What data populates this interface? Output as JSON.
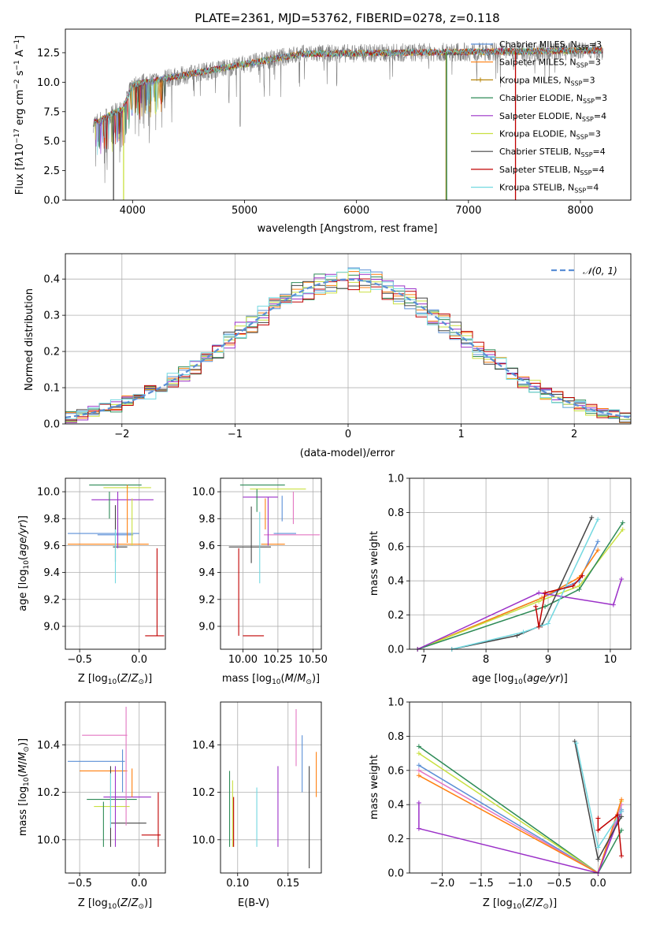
{
  "colors": {
    "chabrier_miles": "#5b8fd6",
    "salpeter_miles": "#ff7f0e",
    "kroupa_miles": "#b8860b",
    "chabrier_elodie": "#2e8b57",
    "salpeter_elodie": "#9b30c8",
    "kroupa_elodie": "#c9e040",
    "chabrier_stelib": "#444444",
    "salpeter_stelib": "#c00000",
    "kroupa_stelib": "#72d8e0",
    "pink": "#e377c2",
    "data": "#808080",
    "normal": "#5b8fd6"
  },
  "chart_data": [
    {
      "id": "spectrum",
      "type": "line",
      "title": "PLATE=2361, MJD=53762, FIBERID=0278, z=0.118",
      "xlabel": "wavelength [Angstrom, rest frame]",
      "ylabel": "Flux [f_λ 10^-17 erg cm^-2 s^-1 A^-1]",
      "xlim": [
        3400,
        8450
      ],
      "ylim": [
        0,
        14.5
      ],
      "xticks": [
        "4000",
        "5000",
        "6000",
        "7000",
        "8000"
      ],
      "yticks": [
        "0.0",
        "2.5",
        "5.0",
        "7.5",
        "10.0",
        "12.5"
      ],
      "legend_position": "upper right",
      "series": [
        {
          "name": "Chabrier MILES, N_SSP=3",
          "values_note": "continuum ~6.5 at 3650 rising to ~12.5 by 5500"
        },
        {
          "name": "Salpeter MILES, N_SSP=3"
        },
        {
          "name": "Kroupa MILES, N_SSP=3"
        },
        {
          "name": "Chabrier ELODIE, N_SSP=3"
        },
        {
          "name": "Salpeter ELODIE, N_SSP=4"
        },
        {
          "name": "Kroupa ELODIE, N_SSP=3"
        },
        {
          "name": "Chabrier STELIB, N_SSP=4"
        },
        {
          "name": "Salpeter STELIB, N_SSP=4"
        },
        {
          "name": "Kroupa STELIB, N_SSP=4"
        }
      ]
    },
    {
      "id": "residuals",
      "type": "line",
      "xlabel": "(data-model)/error",
      "ylabel": "Normed distribution",
      "xlim": [
        -2.5,
        2.5
      ],
      "ylim": [
        0,
        0.47
      ],
      "xticks": [
        "−2",
        "−1",
        "0",
        "1",
        "2"
      ],
      "yticks": [
        "0.0",
        "0.1",
        "0.2",
        "0.3",
        "0.4"
      ],
      "legend": "𝒩(0, 1)"
    },
    {
      "id": "age_vs_Z",
      "type": "scatter",
      "xlabel": "Z [log10(Z/Z⊙)]",
      "ylabel": "age [log10(age/yr)]",
      "xlim": [
        -0.62,
        0.22
      ],
      "ylim": [
        8.83,
        10.1
      ],
      "xticks": [
        "−0.5",
        "0.0"
      ],
      "yticks": [
        "9.0",
        "9.2",
        "9.4",
        "9.6",
        "9.8",
        "10.0"
      ],
      "points": [
        {
          "x": -0.3,
          "y": 9.69,
          "xerr": 0.3,
          "yerr": 0.0,
          "c": "chabrier_miles"
        },
        {
          "x": -0.26,
          "y": 9.61,
          "xerr": 0.34,
          "yerr": 0.0,
          "c": "salpeter_miles"
        },
        {
          "x": -0.2,
          "y": 9.68,
          "xerr": 0.15,
          "yerr": 0.0,
          "c": "chabrier_miles"
        },
        {
          "x": -0.2,
          "y": 10.05,
          "xerr": 0.22,
          "yerr": 0.0,
          "c": "chabrier_elodie"
        },
        {
          "x": -0.14,
          "y": 9.94,
          "xerr": 0.26,
          "yerr": 0.0,
          "c": "salpeter_elodie"
        },
        {
          "x": -0.1,
          "y": 10.03,
          "xerr": 0.2,
          "yerr": 0.0,
          "c": "kroupa_elodie"
        },
        {
          "x": -0.16,
          "y": 9.59,
          "xerr": 0.06,
          "yerr": 0.0,
          "c": "chabrier_stelib"
        },
        {
          "x": 0.13,
          "y": 8.93,
          "xerr": 0.08,
          "yerr": 0.0,
          "c": "salpeter_stelib"
        }
      ]
    },
    {
      "id": "age_vs_mass",
      "type": "scatter",
      "xlabel": "mass [log10(M/M⊙)]",
      "ylabel": "",
      "xlim": [
        9.84,
        10.56
      ],
      "ylim": [
        8.83,
        10.1
      ],
      "xticks": [
        "10.00",
        "10.25",
        "10.50"
      ],
      "yticks": [
        "9.0",
        "9.2",
        "9.4",
        "9.6",
        "9.8",
        "10.0"
      ]
    },
    {
      "id": "weight_vs_age",
      "type": "line",
      "xlabel": "age [log10(age/yr)]",
      "ylabel": "mass weight",
      "xlim": [
        6.77,
        10.33
      ],
      "ylim": [
        0,
        1.0
      ],
      "xticks": [
        "7",
        "8",
        "9",
        "10"
      ],
      "yticks": [
        "0.0",
        "0.2",
        "0.4",
        "0.6",
        "0.8",
        "1.0"
      ]
    },
    {
      "id": "mass_vs_Z",
      "type": "scatter",
      "xlabel": "Z [log10(Z/Z⊙)]",
      "ylabel": "mass [log10(M/M⊙)]",
      "xlim": [
        -0.62,
        0.22
      ],
      "ylim": [
        9.86,
        10.58
      ],
      "xticks": [
        "−0.5",
        "0.0"
      ],
      "yticks": [
        "10.0",
        "10.2",
        "10.4"
      ]
    },
    {
      "id": "mass_vs_ebv",
      "type": "scatter",
      "xlabel": "E(B-V)",
      "ylabel": "",
      "xlim": [
        0.083,
        0.183
      ],
      "ylim": [
        9.86,
        10.58
      ],
      "xticks": [
        "0.10",
        "0.15"
      ],
      "yticks": [
        "10.0",
        "10.2",
        "10.4"
      ]
    },
    {
      "id": "weight_vs_Z",
      "type": "line",
      "xlabel": "Z [log10(Z/Z⊙)]",
      "ylabel": "mass weight",
      "xlim": [
        -2.42,
        0.42
      ],
      "ylim": [
        0,
        1.0
      ],
      "xticks": [
        "−2.0",
        "−1.5",
        "−1.0",
        "−0.5",
        "0.0"
      ],
      "yticks": [
        "0.0",
        "0.2",
        "0.4",
        "0.6",
        "0.8",
        "1.0"
      ]
    }
  ],
  "labels": {
    "title": "PLATE=2361, MJD=53762, FIBERID=0278, z=0.118",
    "spec_xlabel": "wavelength [Angstrom, rest frame]",
    "res_xlabel": "(data-model)/error",
    "res_ylabel": "Normed distribution",
    "normal_legend": "𝒩(0, 1)",
    "mass_weight": "mass weight",
    "ebv": "E(B-V)"
  },
  "legend": [
    {
      "name": "Chabrier MILES",
      "n": "3",
      "c": "chabrier_miles"
    },
    {
      "name": "Salpeter MILES",
      "n": "3",
      "c": "salpeter_miles"
    },
    {
      "name": "Kroupa MILES",
      "n": "3",
      "c": "kroupa_miles"
    },
    {
      "name": "Chabrier ELODIE",
      "n": "3",
      "c": "chabrier_elodie"
    },
    {
      "name": "Salpeter ELODIE",
      "n": "4",
      "c": "salpeter_elodie"
    },
    {
      "name": "Kroupa ELODIE",
      "n": "3",
      "c": "kroupa_elodie"
    },
    {
      "name": "Chabrier STELIB",
      "n": "4",
      "c": "chabrier_stelib"
    },
    {
      "name": "Salpeter STELIB",
      "n": "4",
      "c": "salpeter_stelib"
    },
    {
      "name": "Kroupa STELIB",
      "n": "4",
      "c": "kroupa_stelib"
    }
  ]
}
